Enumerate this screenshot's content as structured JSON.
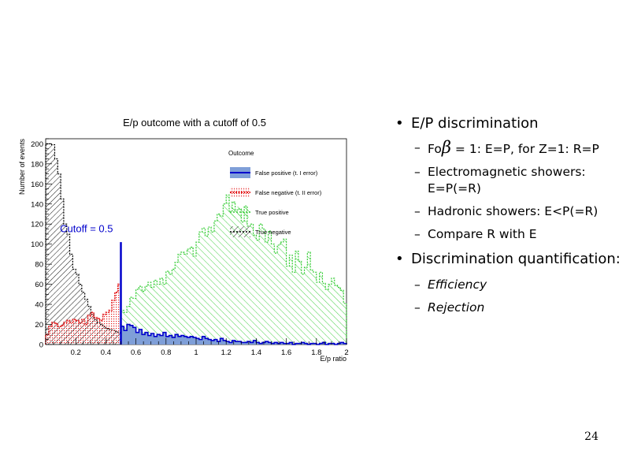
{
  "chart_data": {
    "type": "histogram",
    "title": "E/p outcome with a cutoff of 0.5",
    "xlabel": "E/p ratio",
    "ylabel": "Number of events",
    "xlim": [
      0,
      2.0
    ],
    "ylim": [
      0,
      205
    ],
    "xticks": [
      "0.2",
      "0.4",
      "0.6",
      "0.8",
      "1",
      "1.2",
      "1.4",
      "1.6",
      "1.8",
      "2"
    ],
    "yticks": [
      "0",
      "20",
      "40",
      "60",
      "80",
      "100",
      "120",
      "140",
      "160",
      "180",
      "200"
    ],
    "legend_title": "Outcome",
    "annotation": "Cutoff = 0.5",
    "cutoff": 0.5,
    "series": [
      {
        "name": "False positive (t. I error)",
        "color": "#0000cc",
        "fill": "#7f9fd8",
        "x_start": 0.5,
        "bin_width": 0.02,
        "values": [
          18,
          14,
          20,
          19,
          17,
          12,
          15,
          10,
          12,
          9,
          11,
          8,
          10,
          9,
          12,
          8,
          9,
          7,
          10,
          8,
          9,
          8,
          7,
          8,
          7,
          6,
          5,
          8,
          6,
          5,
          4,
          5,
          3,
          6,
          4,
          3,
          2,
          4,
          3,
          3,
          2,
          2,
          3,
          2,
          4,
          2,
          1,
          2,
          3,
          2,
          1,
          2,
          1,
          2,
          1,
          1,
          2,
          0,
          1,
          1,
          2,
          1,
          0,
          1,
          1,
          0,
          1,
          2,
          0,
          1,
          1,
          0,
          1,
          2,
          1
        ]
      },
      {
        "name": "False negative (t. II error)",
        "color": "#e31a1c",
        "x_start": 0.0,
        "bin_width": 0.02,
        "values": [
          10,
          18,
          22,
          21,
          18,
          19,
          22,
          24,
          22,
          25,
          24,
          22,
          25,
          20,
          29,
          32,
          27,
          26,
          24,
          30,
          32,
          34,
          44,
          52,
          60
        ]
      },
      {
        "name": "True positive",
        "color": "#33cc33",
        "x_start": 0.5,
        "bin_width": 0.02,
        "values": [
          34,
          32,
          38,
          47,
          46,
          55,
          58,
          53,
          58,
          62,
          57,
          64,
          60,
          66,
          60,
          73,
          70,
          75,
          82,
          90,
          92,
          90,
          95,
          97,
          88,
          102,
          112,
          116,
          108,
          117,
          112,
          123,
          130,
          128,
          140,
          149,
          133,
          142,
          134,
          135,
          122,
          138,
          118,
          120,
          109,
          104,
          120,
          115,
          102,
          113,
          100,
          91,
          99,
          102,
          105,
          78,
          89,
          72,
          93,
          83,
          70,
          77,
          92,
          74,
          72,
          62,
          72,
          61,
          55,
          60,
          66,
          59,
          57,
          54,
          41
        ]
      },
      {
        "name": "True negative",
        "color": "#000000",
        "x_start": 0.0,
        "bin_width": 0.02,
        "values": [
          200,
          200,
          199,
          185,
          170,
          145,
          120,
          110,
          90,
          75,
          70,
          60,
          52,
          45,
          38,
          30,
          25,
          22,
          20,
          18,
          16,
          15,
          14,
          13,
          12
        ]
      }
    ]
  },
  "bullets": {
    "b1": "E/P discrimination",
    "b1_sub1_pre": "Fo",
    "b1_sub1_beta": "β",
    "b1_sub1_post": " = 1: E=P, for Z=1: R=P",
    "b1_sub2": "Electromagnetic showers: E=P(=R)",
    "b1_sub3": "Hadronic showers: E<P(=R)",
    "b1_sub4": "Compare R with E",
    "b2": "Discrimination quantification:",
    "b2_sub1": "Efficiency",
    "b2_sub2": "Rejection",
    "bullet_glyph": "•",
    "dash_glyph": "–"
  },
  "slide_number": "24"
}
